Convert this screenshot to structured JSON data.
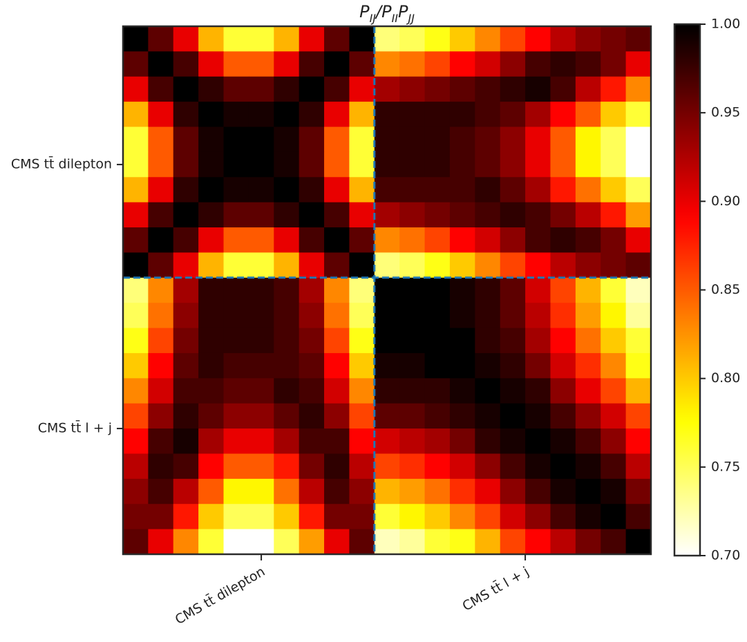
{
  "chart_data": {
    "type": "heatmap",
    "title": "P_{IJ}/P_{II}P_{JJ}",
    "groups": [
      {
        "label": "CMS tt̄ dilepton",
        "n": 10
      },
      {
        "label": "CMS tt̄ l + j",
        "n": 11
      }
    ],
    "cmap": "hot_r",
    "clim": [
      0.7,
      1.0
    ],
    "cticks": [
      {
        "value": 0.7,
        "label": "0.70"
      },
      {
        "value": 0.75,
        "label": "0.75"
      },
      {
        "value": 0.8,
        "label": "0.80"
      },
      {
        "value": 0.85,
        "label": "0.85"
      },
      {
        "value": 0.9,
        "label": "0.90"
      },
      {
        "value": 0.95,
        "label": "0.95"
      },
      {
        "value": 1.0,
        "label": "1.00"
      }
    ],
    "separator_color": "#1f77b4",
    "matrix": [
      [
        1.0,
        0.96,
        0.9,
        0.81,
        0.76,
        0.76,
        0.81,
        0.9,
        0.96,
        1.0,
        0.74,
        0.75,
        0.77,
        0.8,
        0.83,
        0.86,
        0.89,
        0.92,
        0.94,
        0.95,
        0.96
      ],
      [
        0.96,
        1.0,
        0.97,
        0.9,
        0.85,
        0.85,
        0.9,
        0.97,
        1.0,
        0.96,
        0.83,
        0.84,
        0.86,
        0.89,
        0.91,
        0.94,
        0.97,
        0.98,
        0.97,
        0.95,
        0.9
      ],
      [
        0.9,
        0.97,
        1.0,
        0.98,
        0.96,
        0.96,
        0.98,
        1.0,
        0.97,
        0.9,
        0.93,
        0.94,
        0.95,
        0.96,
        0.97,
        0.98,
        0.99,
        0.97,
        0.92,
        0.88,
        0.83
      ],
      [
        0.81,
        0.9,
        0.98,
        1.0,
        0.99,
        0.99,
        1.0,
        0.98,
        0.9,
        0.81,
        0.98,
        0.98,
        0.98,
        0.98,
        0.97,
        0.96,
        0.93,
        0.89,
        0.85,
        0.8,
        0.76
      ],
      [
        0.76,
        0.85,
        0.96,
        0.99,
        1.0,
        1.0,
        0.99,
        0.96,
        0.85,
        0.76,
        0.98,
        0.98,
        0.98,
        0.97,
        0.96,
        0.94,
        0.9,
        0.85,
        0.78,
        0.75,
        0.7
      ],
      [
        0.76,
        0.85,
        0.96,
        0.99,
        1.0,
        1.0,
        0.99,
        0.96,
        0.85,
        0.76,
        0.98,
        0.98,
        0.98,
        0.97,
        0.96,
        0.94,
        0.9,
        0.85,
        0.78,
        0.75,
        0.7
      ],
      [
        0.81,
        0.9,
        0.98,
        1.0,
        0.99,
        0.99,
        1.0,
        0.98,
        0.9,
        0.81,
        0.97,
        0.97,
        0.97,
        0.97,
        0.98,
        0.96,
        0.93,
        0.88,
        0.84,
        0.8,
        0.75
      ],
      [
        0.9,
        0.97,
        1.0,
        0.98,
        0.96,
        0.96,
        0.98,
        1.0,
        0.97,
        0.9,
        0.93,
        0.94,
        0.95,
        0.96,
        0.97,
        0.98,
        0.97,
        0.95,
        0.92,
        0.88,
        0.82
      ],
      [
        0.96,
        1.0,
        0.97,
        0.9,
        0.85,
        0.85,
        0.9,
        0.97,
        1.0,
        0.96,
        0.83,
        0.84,
        0.86,
        0.89,
        0.91,
        0.94,
        0.97,
        0.98,
        0.97,
        0.95,
        0.9
      ],
      [
        1.0,
        0.96,
        0.9,
        0.81,
        0.76,
        0.76,
        0.81,
        0.9,
        0.96,
        1.0,
        0.74,
        0.75,
        0.77,
        0.8,
        0.83,
        0.86,
        0.89,
        0.92,
        0.94,
        0.95,
        0.96
      ],
      [
        0.74,
        0.83,
        0.93,
        0.98,
        0.98,
        0.98,
        0.97,
        0.93,
        0.83,
        0.74,
        1.0,
        1.0,
        1.0,
        0.99,
        0.98,
        0.96,
        0.91,
        0.86,
        0.81,
        0.76,
        0.72
      ],
      [
        0.75,
        0.84,
        0.94,
        0.98,
        0.98,
        0.98,
        0.97,
        0.94,
        0.84,
        0.75,
        1.0,
        1.0,
        1.0,
        0.99,
        0.98,
        0.96,
        0.92,
        0.87,
        0.82,
        0.78,
        0.73
      ],
      [
        0.77,
        0.86,
        0.95,
        0.98,
        0.98,
        0.98,
        0.97,
        0.95,
        0.86,
        0.77,
        1.0,
        1.0,
        1.0,
        1.0,
        0.98,
        0.97,
        0.93,
        0.89,
        0.84,
        0.8,
        0.76
      ],
      [
        0.8,
        0.89,
        0.96,
        0.98,
        0.97,
        0.97,
        0.97,
        0.96,
        0.89,
        0.8,
        0.99,
        0.99,
        1.0,
        1.0,
        0.99,
        0.98,
        0.95,
        0.91,
        0.87,
        0.83,
        0.77
      ],
      [
        0.83,
        0.91,
        0.97,
        0.97,
        0.96,
        0.96,
        0.98,
        0.97,
        0.91,
        0.83,
        0.98,
        0.98,
        0.98,
        0.99,
        1.0,
        0.99,
        0.98,
        0.94,
        0.9,
        0.86,
        0.81
      ],
      [
        0.86,
        0.94,
        0.98,
        0.96,
        0.94,
        0.94,
        0.96,
        0.98,
        0.94,
        0.86,
        0.96,
        0.96,
        0.97,
        0.98,
        0.99,
        1.0,
        0.99,
        0.97,
        0.94,
        0.91,
        0.86
      ],
      [
        0.89,
        0.97,
        0.99,
        0.93,
        0.9,
        0.9,
        0.93,
        0.97,
        0.97,
        0.89,
        0.91,
        0.92,
        0.93,
        0.95,
        0.98,
        0.99,
        1.0,
        0.99,
        0.97,
        0.94,
        0.89
      ],
      [
        0.92,
        0.98,
        0.97,
        0.89,
        0.85,
        0.85,
        0.88,
        0.95,
        0.98,
        0.92,
        0.86,
        0.87,
        0.89,
        0.91,
        0.94,
        0.97,
        0.99,
        1.0,
        0.99,
        0.97,
        0.92
      ],
      [
        0.94,
        0.97,
        0.92,
        0.85,
        0.78,
        0.78,
        0.84,
        0.92,
        0.97,
        0.94,
        0.81,
        0.82,
        0.84,
        0.87,
        0.9,
        0.94,
        0.97,
        0.99,
        1.0,
        0.99,
        0.95
      ],
      [
        0.95,
        0.95,
        0.88,
        0.8,
        0.75,
        0.75,
        0.8,
        0.88,
        0.95,
        0.95,
        0.76,
        0.78,
        0.8,
        0.83,
        0.86,
        0.91,
        0.94,
        0.97,
        0.99,
        1.0,
        0.97
      ],
      [
        0.96,
        0.9,
        0.83,
        0.76,
        0.7,
        0.7,
        0.75,
        0.82,
        0.9,
        0.96,
        0.72,
        0.73,
        0.76,
        0.77,
        0.81,
        0.86,
        0.89,
        0.92,
        0.95,
        0.97,
        1.0
      ]
    ]
  }
}
